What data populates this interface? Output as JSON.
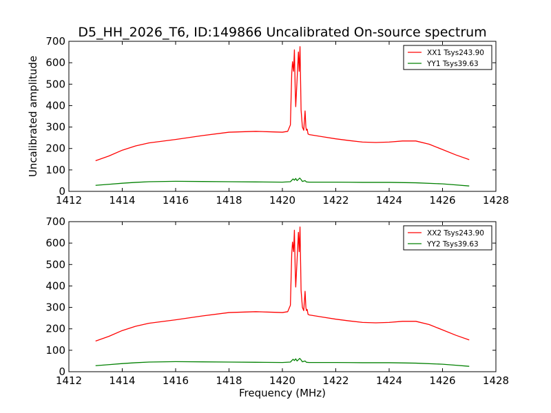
{
  "chart_data": [
    {
      "type": "line",
      "title": "D5_HH_2026_T6, ID:149866 Uncalibrated On-source spectrum",
      "xlabel": "",
      "ylabel": "Uncalibrated amplitude",
      "xlim": [
        1412,
        1428
      ],
      "ylim": [
        0,
        700
      ],
      "xticks": [
        "1412",
        "1414",
        "1416",
        "1418",
        "1420",
        "1422",
        "1424",
        "1426",
        "1428"
      ],
      "yticks": [
        "0",
        "100",
        "200",
        "300",
        "400",
        "500",
        "600",
        "700"
      ],
      "legend_position": "top-right",
      "series": [
        {
          "name": "XX1 Tsys243.90",
          "color": "#ff0000",
          "x": [
            1413.0,
            1413.5,
            1414.0,
            1414.5,
            1415.0,
            1416.0,
            1417.0,
            1418.0,
            1419.0,
            1419.5,
            1420.0,
            1420.2,
            1420.3,
            1420.35,
            1420.38,
            1420.42,
            1420.45,
            1420.48,
            1420.5,
            1420.55,
            1420.6,
            1420.63,
            1420.66,
            1420.7,
            1420.75,
            1420.8,
            1420.85,
            1420.88,
            1420.9,
            1420.93,
            1420.96,
            1421.0,
            1421.5,
            1422.0,
            1422.5,
            1423.0,
            1423.5,
            1424.0,
            1424.5,
            1425.0,
            1425.5,
            1426.0,
            1426.5,
            1427.0
          ],
          "values": [
            143,
            165,
            192,
            212,
            226,
            242,
            260,
            276,
            280,
            278,
            276,
            280,
            310,
            550,
            605,
            560,
            660,
            480,
            395,
            520,
            650,
            560,
            675,
            380,
            300,
            285,
            375,
            300,
            285,
            290,
            268,
            265,
            255,
            245,
            237,
            230,
            228,
            230,
            235,
            235,
            220,
            195,
            170,
            148
          ]
        },
        {
          "name": "YY1 Tsys39.63",
          "color": "#008000",
          "x": [
            1413.0,
            1413.5,
            1414.0,
            1414.5,
            1415.0,
            1416.0,
            1417.0,
            1418.0,
            1419.0,
            1420.0,
            1420.3,
            1420.4,
            1420.45,
            1420.5,
            1420.55,
            1420.6,
            1420.65,
            1420.7,
            1420.75,
            1420.85,
            1420.9,
            1421.0,
            1422.0,
            1423.0,
            1424.0,
            1425.0,
            1426.0,
            1426.5,
            1427.0
          ],
          "values": [
            28,
            33,
            38,
            42,
            45,
            47,
            46,
            45,
            44,
            43,
            45,
            58,
            52,
            60,
            50,
            56,
            62,
            55,
            46,
            50,
            44,
            43,
            43,
            42,
            42,
            40,
            35,
            30,
            25
          ]
        }
      ]
    },
    {
      "type": "line",
      "title": "",
      "xlabel": "Frequency (MHz)",
      "ylabel": "",
      "xlim": [
        1412,
        1428
      ],
      "ylim": [
        0,
        700
      ],
      "xticks": [
        "1412",
        "1414",
        "1416",
        "1418",
        "1420",
        "1422",
        "1424",
        "1426",
        "1428"
      ],
      "yticks": [
        "0",
        "100",
        "200",
        "300",
        "400",
        "500",
        "600",
        "700"
      ],
      "legend_position": "top-right",
      "series": [
        {
          "name": "XX2 Tsys243.90",
          "color": "#ff0000",
          "x": [
            1413.0,
            1413.5,
            1414.0,
            1414.5,
            1415.0,
            1416.0,
            1417.0,
            1418.0,
            1419.0,
            1419.5,
            1420.0,
            1420.2,
            1420.3,
            1420.35,
            1420.38,
            1420.42,
            1420.45,
            1420.48,
            1420.5,
            1420.55,
            1420.6,
            1420.63,
            1420.66,
            1420.7,
            1420.75,
            1420.8,
            1420.85,
            1420.88,
            1420.9,
            1420.93,
            1420.96,
            1421.0,
            1421.5,
            1422.0,
            1422.5,
            1423.0,
            1423.5,
            1424.0,
            1424.5,
            1425.0,
            1425.5,
            1426.0,
            1426.5,
            1427.0
          ],
          "values": [
            143,
            165,
            192,
            212,
            226,
            242,
            260,
            276,
            280,
            278,
            276,
            280,
            310,
            550,
            605,
            560,
            660,
            480,
            395,
            520,
            650,
            560,
            675,
            380,
            300,
            285,
            375,
            300,
            285,
            290,
            268,
            265,
            255,
            245,
            237,
            230,
            228,
            230,
            235,
            235,
            220,
            195,
            170,
            148
          ]
        },
        {
          "name": "YY2 Tsys39.63",
          "color": "#008000",
          "x": [
            1413.0,
            1413.5,
            1414.0,
            1414.5,
            1415.0,
            1416.0,
            1417.0,
            1418.0,
            1419.0,
            1420.0,
            1420.3,
            1420.4,
            1420.45,
            1420.5,
            1420.55,
            1420.6,
            1420.65,
            1420.7,
            1420.75,
            1420.85,
            1420.9,
            1421.0,
            1422.0,
            1423.0,
            1424.0,
            1425.0,
            1426.0,
            1426.5,
            1427.0
          ],
          "values": [
            28,
            33,
            38,
            42,
            45,
            47,
            46,
            45,
            44,
            43,
            45,
            58,
            52,
            60,
            50,
            56,
            62,
            55,
            46,
            50,
            44,
            43,
            43,
            42,
            42,
            40,
            35,
            30,
            25
          ]
        }
      ]
    }
  ]
}
